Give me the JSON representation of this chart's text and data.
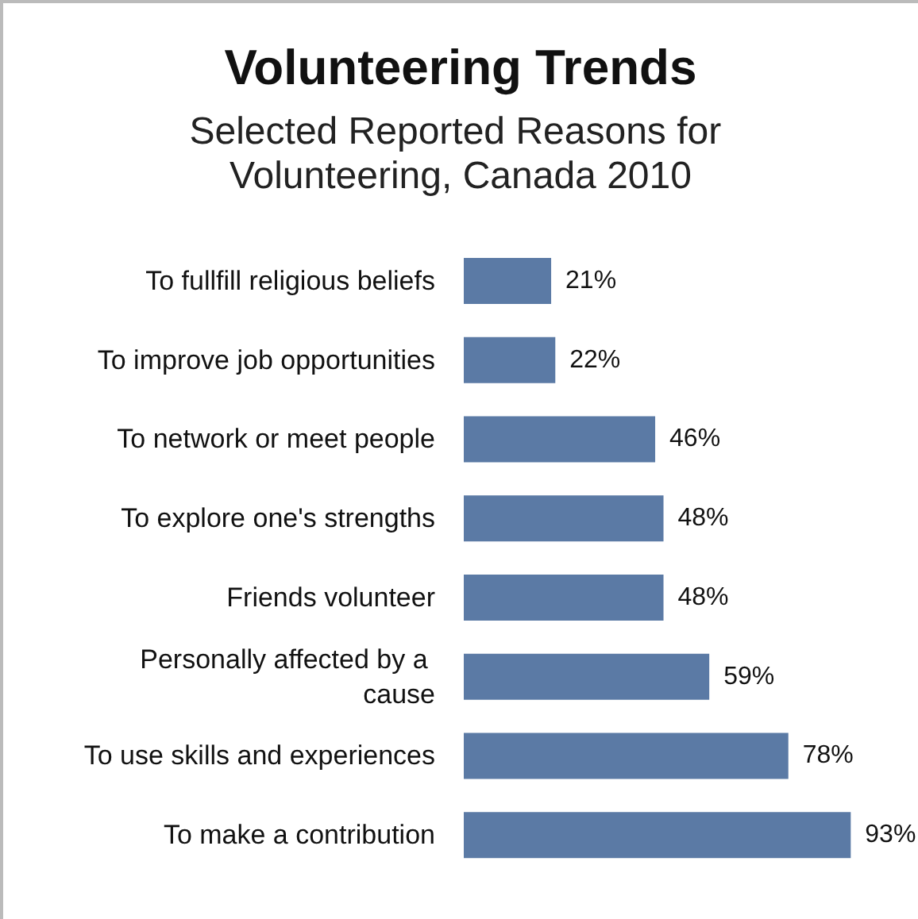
{
  "chart_data": {
    "type": "bar",
    "orientation": "horizontal",
    "title": "Volunteering Trends",
    "subtitle": "Selected Reported Reasons for Volunteering, Canada 2010",
    "categories": [
      "To fullfill religious beliefs",
      "To improve job opportunities",
      "To network or meet people",
      "To explore one's strengths",
      "Friends volunteer",
      "Personally affected by a cause",
      "To use skills and experiences",
      "To make a contribution"
    ],
    "values": [
      21,
      22,
      46,
      48,
      48,
      59,
      78,
      93
    ],
    "value_labels": [
      "21%",
      "22%",
      "46%",
      "48%",
      "48%",
      "59%",
      "78%",
      "93%"
    ],
    "color": "#5b7aa5"
  }
}
